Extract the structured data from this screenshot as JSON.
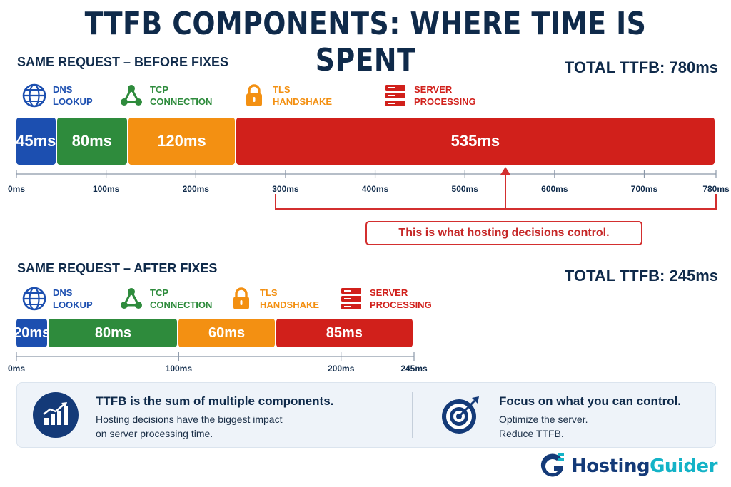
{
  "title": "TTFB COMPONENTS: WHERE TIME IS SPENT",
  "colors": {
    "dns": "#1c4fb0",
    "tcp": "#2e8b3c",
    "tls": "#f39012",
    "server": "#d1201b",
    "navy": "#0f2a4a"
  },
  "legend": [
    {
      "icon": "globe-icon",
      "line1": "DNS",
      "line2": "LOOKUP",
      "color": "#1c4fb0"
    },
    {
      "icon": "network-icon",
      "line1": "TCP",
      "line2": "CONNECTION",
      "color": "#2e8b3c"
    },
    {
      "icon": "lock-icon",
      "line1": "TLS",
      "line2": "HANDSHAKE",
      "color": "#f39012"
    },
    {
      "icon": "server-icon",
      "line1": "SERVER",
      "line2": "PROCESSING",
      "color": "#d1201b"
    }
  ],
  "before": {
    "label": "SAME REQUEST – BEFORE FIXES",
    "total": "TOTAL TTFB: 780ms",
    "callout": "This is what hosting decisions control."
  },
  "after": {
    "label": "SAME REQUEST – AFTER FIXES",
    "total": "TOTAL TTFB: 245ms"
  },
  "info": {
    "left_title": "TTFB is the sum of multiple components.",
    "left_line1": "Hosting decisions have the biggest impact",
    "left_line2": "on server processing time.",
    "right_title": "Focus on what you can control.",
    "right_line1": "Optimize the server.",
    "right_line2": "Reduce TTFB."
  },
  "brand": {
    "part1": "Hosting",
    "part2": "Guider"
  },
  "chart_data": [
    {
      "type": "bar",
      "orientation": "horizontal-stacked",
      "title": "SAME REQUEST – BEFORE FIXES",
      "categories": [
        "DNS LOOKUP",
        "TCP CONNECTION",
        "TLS HANDSHAKE",
        "SERVER PROCESSING"
      ],
      "values": [
        45,
        80,
        120,
        535
      ],
      "value_labels": [
        "45ms",
        "80ms",
        "120ms",
        "535ms"
      ],
      "xlim": [
        0,
        780
      ],
      "ticks": [
        0,
        100,
        200,
        300,
        400,
        500,
        600,
        700,
        780
      ],
      "tick_labels": [
        "0ms",
        "100ms",
        "200ms",
        "300ms",
        "400ms",
        "500ms",
        "600ms",
        "700ms",
        "780ms"
      ]
    },
    {
      "type": "bar",
      "orientation": "horizontal-stacked",
      "title": "SAME REQUEST – AFTER FIXES",
      "categories": [
        "DNS LOOKUP",
        "TCP CONNECTION",
        "TLS HANDSHAKE",
        "SERVER PROCESSING"
      ],
      "values": [
        20,
        80,
        60,
        85
      ],
      "value_labels": [
        "20ms",
        "80ms",
        "60ms",
        "85ms"
      ],
      "xlim": [
        0,
        245
      ],
      "ticks": [
        0,
        100,
        200,
        245
      ],
      "tick_labels": [
        "0ms",
        "100ms",
        "200ms",
        "245ms"
      ]
    }
  ]
}
